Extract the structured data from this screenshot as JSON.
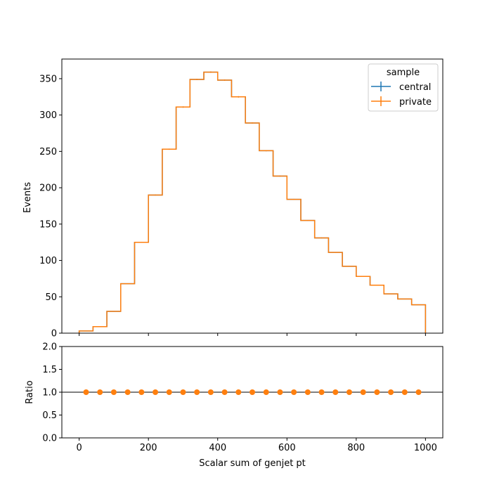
{
  "chart_data": [
    {
      "type": "line",
      "drawstyle": "step",
      "xlabel": "",
      "ylabel": "Events",
      "xlim": [
        -50,
        1050
      ],
      "ylim": [
        0,
        377
      ],
      "x_ticks": [
        0,
        200,
        400,
        600,
        800,
        1000
      ],
      "y_ticks": [
        0,
        50,
        100,
        150,
        200,
        250,
        300,
        350
      ],
      "y_tick_labels": [
        "0",
        "50",
        "100",
        "150",
        "200",
        "250",
        "300",
        "350"
      ],
      "bin_edges": [
        0,
        40,
        80,
        120,
        160,
        200,
        240,
        280,
        320,
        360,
        400,
        440,
        480,
        520,
        560,
        600,
        640,
        680,
        720,
        760,
        800,
        840,
        880,
        920,
        960,
        1000
      ],
      "legend": {
        "title": "sample",
        "position": "top-right"
      },
      "series": [
        {
          "name": "central",
          "color": "#1f77b4",
          "values": [
            3,
            9,
            30,
            68,
            125,
            190,
            253,
            311,
            349,
            359,
            348,
            325,
            289,
            251,
            216,
            184,
            155,
            131,
            111,
            92,
            78,
            66,
            54,
            47,
            39
          ]
        },
        {
          "name": "private",
          "color": "#ff7f0e",
          "values": [
            3,
            9,
            30,
            68,
            125,
            190,
            253,
            311,
            349,
            359,
            348,
            325,
            289,
            251,
            216,
            184,
            155,
            131,
            111,
            92,
            78,
            66,
            54,
            47,
            39
          ]
        }
      ]
    },
    {
      "type": "scatter",
      "xlabel": "Scalar sum of genjet pt",
      "ylabel": "Ratio",
      "xlim": [
        -50,
        1050
      ],
      "ylim": [
        0,
        2
      ],
      "x_ticks": [
        0,
        200,
        400,
        600,
        800,
        1000
      ],
      "x_tick_labels": [
        "0",
        "200",
        "400",
        "600",
        "800",
        "1000"
      ],
      "y_ticks": [
        0,
        0.5,
        1,
        1.5,
        2
      ],
      "y_tick_labels": [
        "0.0",
        "0.5",
        "1.0",
        "1.5",
        "2.0"
      ],
      "reference_line": 1,
      "color": "#ff7f0e",
      "x": [
        20,
        60,
        100,
        140,
        180,
        220,
        260,
        300,
        340,
        380,
        420,
        460,
        500,
        540,
        580,
        620,
        660,
        700,
        740,
        780,
        820,
        860,
        900,
        940,
        980
      ],
      "y": [
        1,
        1,
        1,
        1,
        1,
        1,
        1,
        1,
        1,
        1,
        1,
        1,
        1,
        1,
        1,
        1,
        1,
        1,
        1,
        1,
        1,
        1,
        1,
        1,
        1
      ]
    }
  ]
}
